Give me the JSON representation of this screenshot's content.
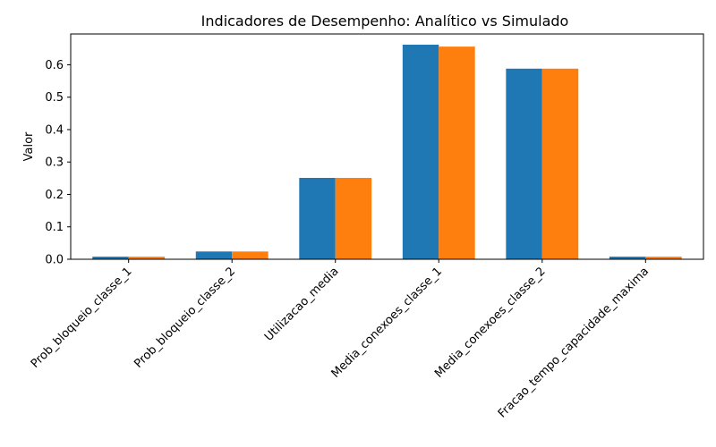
{
  "chart_data": {
    "type": "bar",
    "title": "Indicadores de Desempenho: Analítico vs Simulado",
    "xlabel": "",
    "ylabel": "Valor",
    "categories": [
      "Prob_bloqueio_classe_1",
      "Prob_bloqueio_classe_2",
      "Utilizacao_media",
      "Media_conexoes_classe_1",
      "Media_conexoes_classe_2",
      "Fracao_tempo_capacidade_maxima"
    ],
    "series": [
      {
        "values": [
          0.008,
          0.024,
          0.251,
          0.662,
          0.588,
          0.008
        ],
        "color": "#1f77b4"
      },
      {
        "values": [
          0.008,
          0.024,
          0.251,
          0.656,
          0.588,
          0.008
        ],
        "color": "#ff7f0e"
      }
    ],
    "ylim": [
      0,
      0.695
    ],
    "yticks": [
      0.0,
      0.1,
      0.2,
      0.3,
      0.4,
      0.5,
      0.6
    ],
    "ytick_labels": [
      "0.0",
      "0.1",
      "0.2",
      "0.3",
      "0.4",
      "0.5",
      "0.6"
    ],
    "grid": false,
    "legend": "none"
  }
}
